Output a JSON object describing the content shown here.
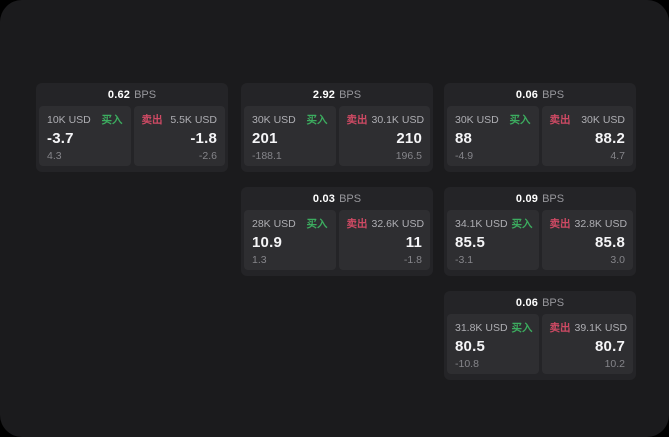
{
  "labels": {
    "unit": "BPS",
    "buy": "买入",
    "sell": "卖出"
  },
  "colors": {
    "background": "#1b1b1d",
    "card": "#242427",
    "panel": "#2e2e31",
    "buy": "#3cac5f",
    "sell": "#cf4a64"
  },
  "cards": [
    {
      "bps": "0.62",
      "buy": {
        "amount": "10K USD",
        "value": "-3.7",
        "delta": "4.3"
      },
      "sell": {
        "amount": "5.5K USD",
        "value": "-1.8",
        "delta": "-2.6"
      }
    },
    {
      "bps": "2.92",
      "buy": {
        "amount": "30K USD",
        "value": "201",
        "delta": "-188.1"
      },
      "sell": {
        "amount": "30.1K USD",
        "value": "210",
        "delta": "196.5"
      }
    },
    {
      "bps": "0.06",
      "buy": {
        "amount": "30K USD",
        "value": "88",
        "delta": "-4.9"
      },
      "sell": {
        "amount": "30K USD",
        "value": "88.2",
        "delta": "4.7"
      }
    },
    {
      "bps": "0.03",
      "buy": {
        "amount": "28K USD",
        "value": "10.9",
        "delta": "1.3"
      },
      "sell": {
        "amount": "32.6K USD",
        "value": "11",
        "delta": "-1.8"
      }
    },
    {
      "bps": "0.09",
      "buy": {
        "amount": "34.1K USD",
        "value": "85.5",
        "delta": "-3.1"
      },
      "sell": {
        "amount": "32.8K USD",
        "value": "85.8",
        "delta": "3.0"
      }
    },
    {
      "bps": "0.06",
      "buy": {
        "amount": "31.8K USD",
        "value": "80.5",
        "delta": "-10.8"
      },
      "sell": {
        "amount": "39.1K USD",
        "value": "80.7",
        "delta": "10.2"
      }
    }
  ]
}
